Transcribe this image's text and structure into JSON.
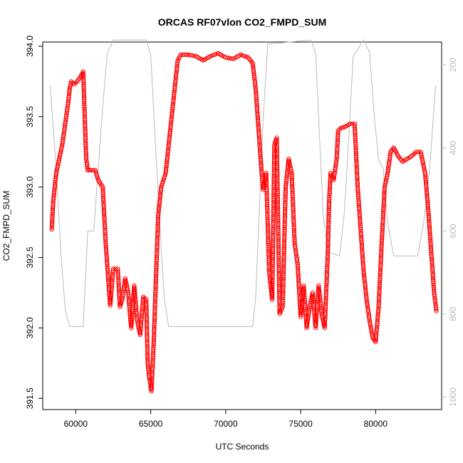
{
  "chart_data": {
    "type": "scatter",
    "title": "ORCAS RF07vlon CO2_FMPD_SUM",
    "xlabel": "UTC Seconds",
    "ylabel": "CO2_FMPD_SUM",
    "xlim": [
      57800,
      84400
    ],
    "ylim": [
      391.42,
      394.03
    ],
    "x_ticks": [
      60000,
      65000,
      70000,
      75000,
      80000
    ],
    "y_ticks": [
      391.5,
      392.0,
      392.5,
      393.0,
      393.5,
      394.0
    ],
    "y2_ticks": [
      200,
      400,
      600,
      800,
      1000
    ],
    "y2lim": [
      1030,
      145
    ],
    "colors": {
      "series": "#ff0000",
      "secondary": "#bbbbbb"
    },
    "series": [
      {
        "marker": "open-circle",
        "points": [
          [
            58400,
            392.7
          ],
          [
            58500,
            392.9
          ],
          [
            58700,
            393.1
          ],
          [
            58900,
            393.2
          ],
          [
            59100,
            393.3
          ],
          [
            59300,
            393.45
          ],
          [
            59500,
            393.6
          ],
          [
            59600,
            393.7
          ],
          [
            59700,
            393.75
          ],
          [
            59900,
            393.73
          ],
          [
            60100,
            393.75
          ],
          [
            60300,
            393.78
          ],
          [
            60500,
            393.82
          ],
          [
            60600,
            393.5
          ],
          [
            60700,
            393.2
          ],
          [
            60800,
            393.12
          ],
          [
            61000,
            393.12
          ],
          [
            61300,
            393.12
          ],
          [
            61500,
            393.05
          ],
          [
            61800,
            393.0
          ],
          [
            61900,
            392.8
          ],
          [
            62000,
            392.6
          ],
          [
            62100,
            392.45
          ],
          [
            62200,
            392.3
          ],
          [
            62300,
            392.16
          ],
          [
            62500,
            392.42
          ],
          [
            62800,
            392.42
          ],
          [
            62950,
            392.15
          ],
          [
            63100,
            392.2
          ],
          [
            63300,
            392.35
          ],
          [
            63500,
            392.25
          ],
          [
            63700,
            392.0
          ],
          [
            63900,
            392.3
          ],
          [
            64100,
            392.05
          ],
          [
            64300,
            391.95
          ],
          [
            64500,
            392.22
          ],
          [
            64700,
            392.2
          ],
          [
            64800,
            391.75
          ],
          [
            64900,
            391.65
          ],
          [
            65050,
            391.55
          ],
          [
            65200,
            391.9
          ],
          [
            65300,
            392.2
          ],
          [
            65400,
            392.5
          ],
          [
            65500,
            392.8
          ],
          [
            65700,
            393.0
          ],
          [
            66000,
            393.1
          ],
          [
            66200,
            393.3
          ],
          [
            66400,
            393.5
          ],
          [
            66600,
            393.7
          ],
          [
            66800,
            393.9
          ],
          [
            67000,
            393.94
          ],
          [
            67500,
            393.94
          ],
          [
            68000,
            393.93
          ],
          [
            68500,
            393.9
          ],
          [
            69000,
            393.93
          ],
          [
            69500,
            393.95
          ],
          [
            70000,
            393.92
          ],
          [
            70500,
            393.91
          ],
          [
            71000,
            393.94
          ],
          [
            71500,
            393.92
          ],
          [
            71800,
            393.88
          ],
          [
            72000,
            393.7
          ],
          [
            72200,
            393.4
          ],
          [
            72400,
            393.1
          ],
          [
            72500,
            392.98
          ],
          [
            72700,
            393.1
          ],
          [
            72900,
            392.4
          ],
          [
            73100,
            392.2
          ],
          [
            73250,
            393.3
          ],
          [
            73400,
            393.35
          ],
          [
            73600,
            392.1
          ],
          [
            73800,
            392.15
          ],
          [
            74000,
            393.0
          ],
          [
            74200,
            393.2
          ],
          [
            74400,
            393.1
          ],
          [
            74600,
            392.6
          ],
          [
            74800,
            392.45
          ],
          [
            75000,
            392.08
          ],
          [
            75200,
            392.3
          ],
          [
            75400,
            392.0
          ],
          [
            75600,
            392.15
          ],
          [
            75800,
            392.25
          ],
          [
            76000,
            392.0
          ],
          [
            76200,
            392.3
          ],
          [
            76400,
            392.1
          ],
          [
            76600,
            392.0
          ],
          [
            76800,
            392.5
          ],
          [
            76900,
            392.9
          ],
          [
            77000,
            393.1
          ],
          [
            77200,
            393.05
          ],
          [
            77400,
            393.2
          ],
          [
            77500,
            393.4
          ],
          [
            77700,
            393.42
          ],
          [
            78000,
            393.43
          ],
          [
            78300,
            393.45
          ],
          [
            78600,
            393.45
          ],
          [
            78800,
            393.0
          ],
          [
            79000,
            392.7
          ],
          [
            79200,
            392.4
          ],
          [
            79400,
            392.2
          ],
          [
            79600,
            392.05
          ],
          [
            79800,
            391.93
          ],
          [
            80000,
            391.9
          ],
          [
            80200,
            392.15
          ],
          [
            80400,
            392.6
          ],
          [
            80600,
            393.0
          ],
          [
            80800,
            393.1
          ],
          [
            81000,
            393.25
          ],
          [
            81200,
            393.28
          ],
          [
            81500,
            393.22
          ],
          [
            81800,
            393.18
          ],
          [
            82100,
            393.2
          ],
          [
            82400,
            393.22
          ],
          [
            82700,
            393.25
          ],
          [
            83000,
            393.25
          ],
          [
            83300,
            393.1
          ],
          [
            83500,
            392.85
          ],
          [
            83700,
            392.55
          ],
          [
            83900,
            392.25
          ],
          [
            84050,
            392.12
          ]
        ]
      }
    ],
    "secondary_line": {
      "axis": "right",
      "points": [
        [
          58300,
          250
        ],
        [
          58700,
          450
        ],
        [
          59000,
          650
        ],
        [
          59300,
          790
        ],
        [
          59600,
          830
        ],
        [
          60500,
          830
        ],
        [
          60800,
          600
        ],
        [
          61200,
          600
        ],
        [
          61500,
          450
        ],
        [
          61800,
          300
        ],
        [
          62100,
          175
        ],
        [
          62500,
          140
        ],
        [
          64700,
          140
        ],
        [
          65000,
          175
        ],
        [
          65300,
          380
        ],
        [
          65600,
          580
        ],
        [
          65900,
          760
        ],
        [
          66200,
          830
        ],
        [
          66800,
          830
        ],
        [
          71800,
          830
        ],
        [
          72000,
          760
        ],
        [
          72300,
          500
        ],
        [
          72500,
          330
        ],
        [
          72800,
          150
        ],
        [
          75700,
          140
        ],
        [
          76000,
          175
        ],
        [
          76200,
          330
        ],
        [
          76500,
          560
        ],
        [
          76800,
          650
        ],
        [
          77600,
          660
        ],
        [
          77900,
          560
        ],
        [
          78200,
          380
        ],
        [
          78500,
          180
        ],
        [
          79200,
          140
        ],
        [
          79600,
          170
        ],
        [
          79900,
          320
        ],
        [
          80200,
          430
        ],
        [
          80500,
          450
        ],
        [
          80800,
          580
        ],
        [
          81200,
          660
        ],
        [
          82800,
          660
        ],
        [
          83200,
          580
        ],
        [
          83600,
          450
        ],
        [
          84000,
          250
        ]
      ]
    }
  }
}
